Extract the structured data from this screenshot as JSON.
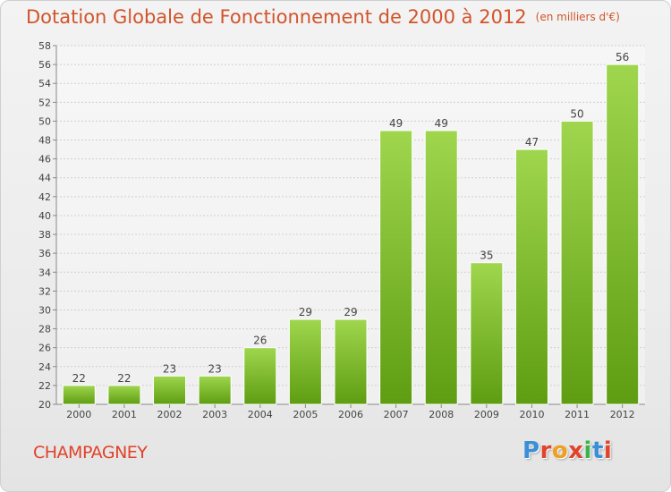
{
  "title": "Dotation Globale de Fonctionnement de 2000 à 2012",
  "subtitle": "(en milliers d'€)",
  "commune": "CHAMPAGNEY",
  "logo": {
    "letters": [
      "P",
      "r",
      "o",
      "x",
      "i",
      "t",
      "i"
    ],
    "colors": [
      "#3a8fd6",
      "#e0442a",
      "#f0a020",
      "#e0442a",
      "#3ab34a",
      "#3a8fd6",
      "#e0442a"
    ]
  },
  "colors": {
    "bar_top": "#9fd64e",
    "bar_bottom": "#5e9d12",
    "title": "#d1542b"
  },
  "chart_data": {
    "type": "bar",
    "categories": [
      "2000",
      "2001",
      "2002",
      "2003",
      "2004",
      "2005",
      "2006",
      "2007",
      "2008",
      "2009",
      "2010",
      "2011",
      "2012"
    ],
    "values": [
      22,
      22,
      23,
      23,
      26,
      29,
      29,
      49,
      49,
      35,
      47,
      50,
      56
    ],
    "ylim": [
      20,
      58
    ],
    "yticks": [
      20,
      22,
      24,
      26,
      28,
      30,
      32,
      34,
      36,
      38,
      40,
      42,
      44,
      46,
      48,
      50,
      52,
      54,
      56,
      58
    ],
    "grid": true
  }
}
